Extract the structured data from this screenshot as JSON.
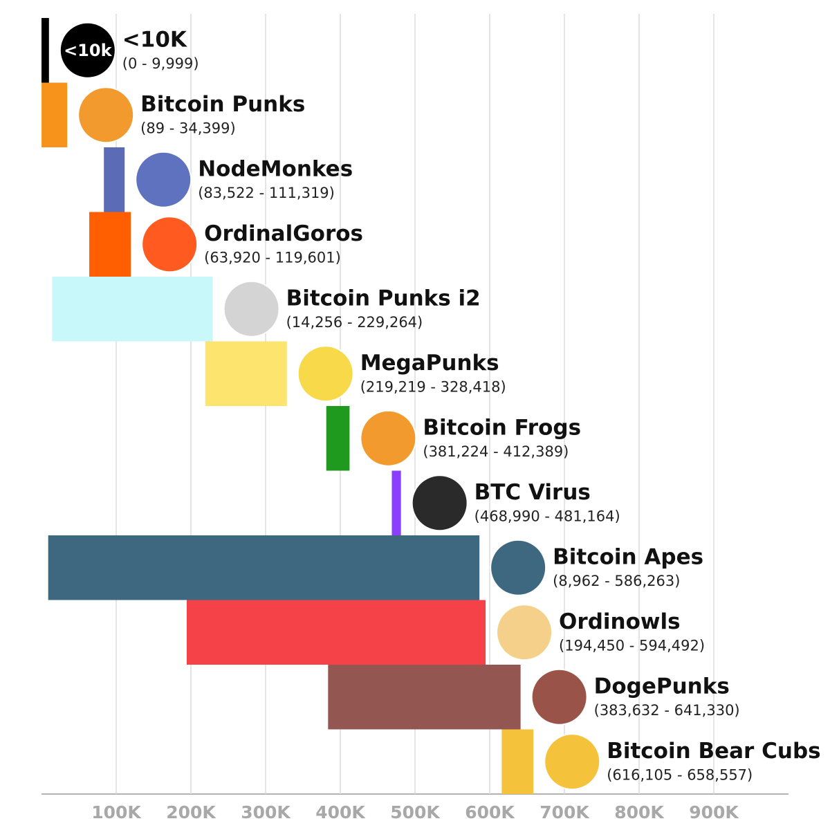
{
  "chart_data": {
    "type": "range_bar",
    "badge": "<10k",
    "categories": [
      "<10K",
      "Bitcoin Punks",
      "NodeMonkes",
      "OrdinalGoros",
      "Bitcoin Punks i2",
      "MegaPunks",
      "Bitcoin Frogs",
      "BTC Virus",
      "Bitcoin Apes",
      "Ordinowls",
      "DogePunks",
      "Bitcoin Bear Cubs"
    ],
    "starts": [
      0,
      89,
      83522,
      63920,
      14256,
      219219,
      381224,
      468990,
      8962,
      194450,
      383632,
      616105
    ],
    "ends": [
      9999,
      34399,
      111319,
      119601,
      229264,
      328418,
      412389,
      481164,
      586263,
      594492,
      641330,
      658557
    ],
    "value_labels": [
      "(0 - 9,999)",
      "(89 - 34,399)",
      "(83,522 - 111,319)",
      "(63,920 - 119,601)",
      "(14,256 - 229,264)",
      "(219,219 - 328,418)",
      "(381,224 - 412,389)",
      "(468,990 - 481,164)",
      "(8,962 - 586,263)",
      "(194,450 - 594,492)",
      "(383,632 - 641,330)",
      "(616,105 - 658,557)"
    ],
    "colors": [
      "#000000",
      "#f7931a",
      "#5b6bb5",
      "#ff5f00",
      "#c9f8fb",
      "#fde46e",
      "#1f9a1f",
      "#8a3ffc",
      "#3d6880",
      "#f54248",
      "#935650",
      "#f5c33b"
    ],
    "xlim": [
      0,
      1000000
    ],
    "xticks": [
      {
        "value": 100000,
        "label": "100K"
      },
      {
        "value": 200000,
        "label": "200K"
      },
      {
        "value": 300000,
        "label": "300K"
      },
      {
        "value": 400000,
        "label": "400K"
      },
      {
        "value": 500000,
        "label": "500K"
      },
      {
        "value": 600000,
        "label": "600K"
      },
      {
        "value": 700000,
        "label": "700K"
      },
      {
        "value": 800000,
        "label": "800K"
      },
      {
        "value": 900000,
        "label": "900K"
      }
    ],
    "grid": true
  }
}
